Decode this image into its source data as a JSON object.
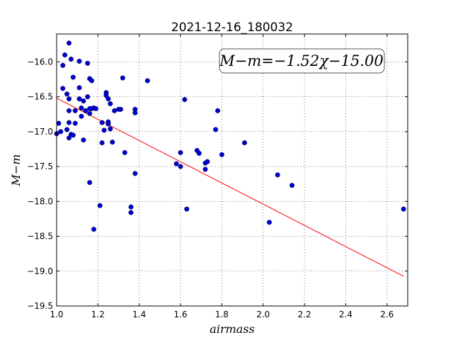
{
  "chart_data": {
    "type": "scatter",
    "title": "2021-12-16_180032",
    "xlabel": "airmass",
    "ylabel": "M−m",
    "xlim": [
      1.0,
      2.7
    ],
    "ylim": [
      -19.5,
      -15.6
    ],
    "x_ticks": [
      1.0,
      1.2,
      1.4,
      1.6,
      1.8,
      2.0,
      2.2,
      2.4,
      2.6
    ],
    "x_tick_labels": [
      "1.0",
      "1.2",
      "1.4",
      "1.6",
      "1.8",
      "2.0",
      "2.2",
      "2.4",
      "2.6"
    ],
    "y_ticks": [
      -19.5,
      -19.0,
      -18.5,
      -18.0,
      -17.5,
      -17.0,
      -16.5,
      -16.0
    ],
    "y_tick_labels": [
      "−19.5",
      "−19.0",
      "−18.5",
      "−18.0",
      "−17.5",
      "−17.0",
      "−16.5",
      "−16.0"
    ],
    "grid": true,
    "annotation": "M−m=−1.52χ−15.00",
    "fit": {
      "slope": -1.52,
      "intercept": -15.0,
      "x_range": [
        1.0,
        2.68
      ],
      "color": "#ff0000"
    },
    "point_color": "#0000cc",
    "points": [
      [
        1.0,
        -17.03
      ],
      [
        1.01,
        -16.88
      ],
      [
        1.02,
        -17.0
      ],
      [
        1.03,
        -16.05
      ],
      [
        1.03,
        -16.38
      ],
      [
        1.04,
        -15.9
      ],
      [
        1.05,
        -16.97
      ],
      [
        1.05,
        -16.46
      ],
      [
        1.06,
        -15.73
      ],
      [
        1.06,
        -16.53
      ],
      [
        1.06,
        -16.7
      ],
      [
        1.06,
        -16.87
      ],
      [
        1.06,
        -17.09
      ],
      [
        1.07,
        -17.04
      ],
      [
        1.08,
        -17.05
      ],
      [
        1.07,
        -15.96
      ],
      [
        1.08,
        -16.22
      ],
      [
        1.09,
        -16.7
      ],
      [
        1.09,
        -16.88
      ],
      [
        1.11,
        -15.99
      ],
      [
        1.11,
        -16.37
      ],
      [
        1.11,
        -16.53
      ],
      [
        1.12,
        -16.66
      ],
      [
        1.12,
        -16.78
      ],
      [
        1.13,
        -17.12
      ],
      [
        1.13,
        -16.56
      ],
      [
        1.14,
        -16.7
      ],
      [
        1.15,
        -16.02
      ],
      [
        1.15,
        -16.5
      ],
      [
        1.16,
        -16.24
      ],
      [
        1.16,
        -16.74
      ],
      [
        1.17,
        -16.27
      ],
      [
        1.17,
        -16.67
      ],
      [
        1.16,
        -16.67
      ],
      [
        1.18,
        -16.66
      ],
      [
        1.16,
        -17.73
      ],
      [
        1.18,
        -18.4
      ],
      [
        1.19,
        -16.67
      ],
      [
        1.21,
        -18.06
      ],
      [
        1.22,
        -16.87
      ],
      [
        1.22,
        -17.16
      ],
      [
        1.23,
        -16.98
      ],
      [
        1.24,
        -16.44
      ],
      [
        1.24,
        -16.48
      ],
      [
        1.25,
        -16.53
      ],
      [
        1.25,
        -16.86
      ],
      [
        1.25,
        -16.89
      ],
      [
        1.26,
        -16.96
      ],
      [
        1.26,
        -16.6
      ],
      [
        1.27,
        -17.15
      ],
      [
        1.28,
        -16.7
      ],
      [
        1.3,
        -16.68
      ],
      [
        1.31,
        -16.68
      ],
      [
        1.32,
        -16.23
      ],
      [
        1.33,
        -17.3
      ],
      [
        1.36,
        -18.08
      ],
      [
        1.36,
        -18.16
      ],
      [
        1.38,
        -16.68
      ],
      [
        1.38,
        -16.73
      ],
      [
        1.38,
        -17.6
      ],
      [
        1.44,
        -16.27
      ],
      [
        1.58,
        -17.46
      ],
      [
        1.6,
        -17.3
      ],
      [
        1.6,
        -17.5
      ],
      [
        1.62,
        -16.54
      ],
      [
        1.63,
        -18.11
      ],
      [
        1.68,
        -17.27
      ],
      [
        1.69,
        -17.31
      ],
      [
        1.72,
        -17.45
      ],
      [
        1.72,
        -17.54
      ],
      [
        1.73,
        -17.43
      ],
      [
        1.77,
        -16.97
      ],
      [
        1.78,
        -16.7
      ],
      [
        1.8,
        -17.33
      ],
      [
        1.91,
        -17.16
      ],
      [
        2.03,
        -18.3
      ],
      [
        2.07,
        -17.62
      ],
      [
        2.14,
        -17.77
      ],
      [
        2.68,
        -18.11
      ]
    ]
  }
}
